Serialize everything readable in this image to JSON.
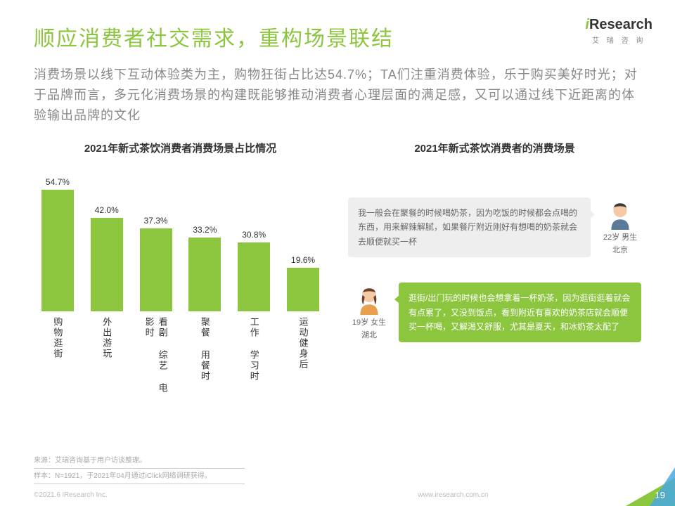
{
  "logo": {
    "brand_prefix": "i",
    "brand": "Research",
    "sub": "艾 瑞 咨 询"
  },
  "title": "顺应消费者社交需求，重构场景联结",
  "subtitle": "消费场景以线下互动体验类为主，购物狂街占比达54.7%；TA们注重消费体验，乐于购买美好时光；对于品牌而言，多元化消费场景的构建既能够推动消费者心理层面的满足感，又可以通过线下近距离的体验输出品牌的文化",
  "chart": {
    "type": "bar",
    "title": "2021年新式茶饮消费者消费场景占比情况",
    "bar_color": "#8cc63f",
    "max": 60,
    "categories": [
      "购物逛街",
      "外出游玩",
      "看剧 综艺 电影时",
      "聚餐 用餐时",
      "工作 学习时",
      "运动健身后"
    ],
    "values": [
      54.7,
      42.0,
      37.3,
      33.2,
      30.8,
      19.6
    ],
    "labels": [
      "54.7%",
      "42.0%",
      "37.3%",
      "33.2%",
      "30.8%",
      "19.6%"
    ]
  },
  "right_title": "2021年新式茶饮消费者的消费场景",
  "quotes": [
    {
      "text": "我一般会在聚餐的时候喝奶茶，因为吃饭的时候都会点喝的东西，用来解辣解腻，如果餐厅附近刚好有想喝的奶茶就会去顺便就买一杯",
      "who1": "22岁 男生",
      "who2": "北京",
      "side": "right",
      "style": "grey"
    },
    {
      "text": "逛街/出门玩的时候也会想拿着一杯奶茶，因为逛街逛着就会有点累了，又没到饭点，看到附近有喜欢的奶茶店就会顺便买一杯喝，又解渴又舒服，尤其是夏天，和冰奶茶太配了",
      "who1": "19岁 女生",
      "who2": "湖北",
      "side": "left",
      "style": "green"
    }
  ],
  "footnote": {
    "l1": "来源：艾瑞咨询基于用户访谈整理。",
    "l2": "样本：N=1921，于2021年04月通过iClick网络调研获得。"
  },
  "copyright": "©2021.6 iResearch Inc.",
  "url": "www.iresearch.com.cn",
  "page": "19"
}
